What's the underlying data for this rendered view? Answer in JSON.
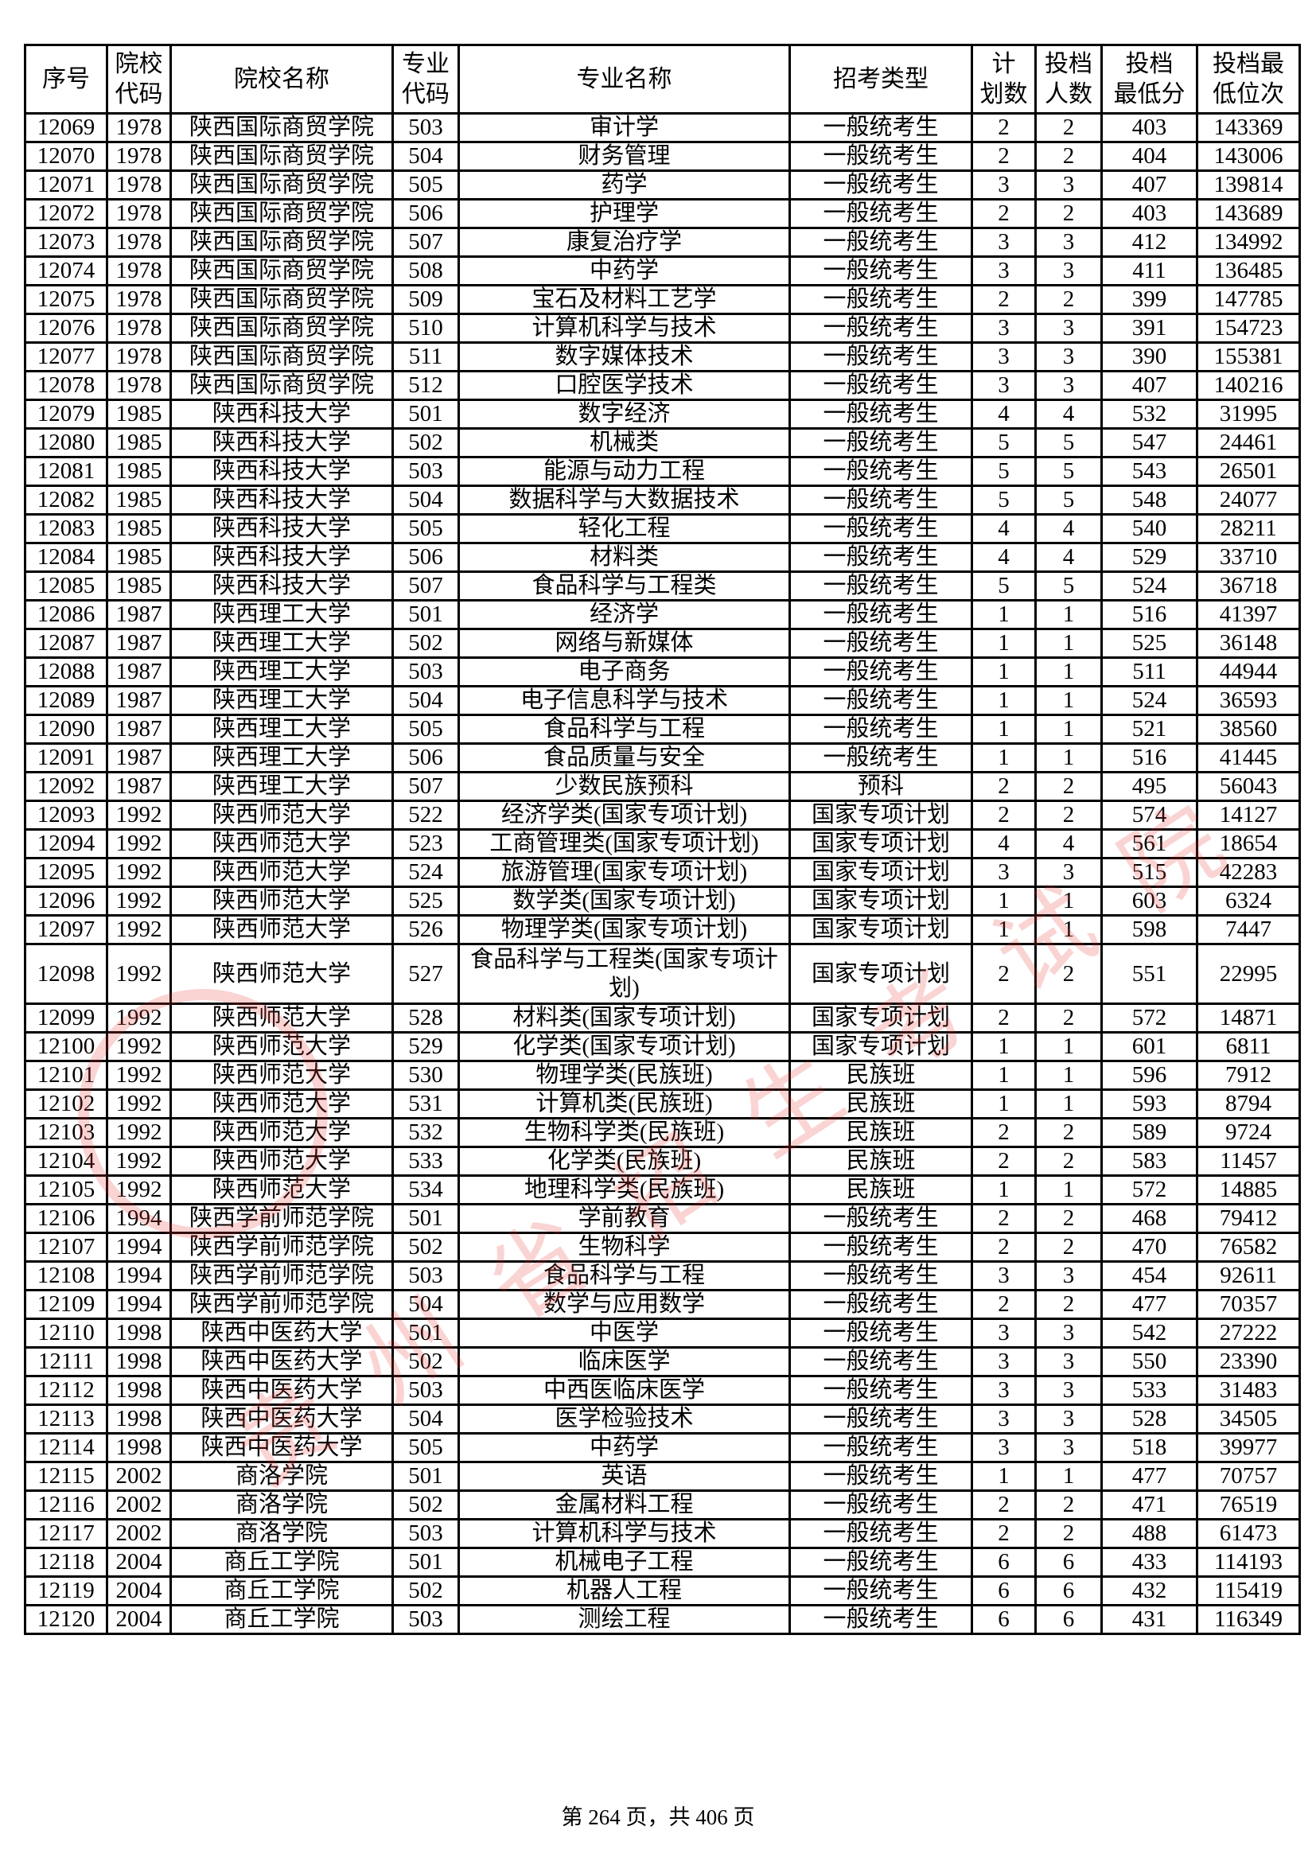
{
  "table": {
    "headers": [
      "序号",
      "院校\n代码",
      "院校名称",
      "专业\n代码",
      "专业名称",
      "招考类型",
      "计\n划数",
      "投档\n人数",
      "投档\n最低分",
      "投档最\n低位次"
    ],
    "rows": [
      [
        "12069",
        "1978",
        "陕西国际商贸学院",
        "503",
        "审计学",
        "一般统考生",
        "2",
        "2",
        "403",
        "143369"
      ],
      [
        "12070",
        "1978",
        "陕西国际商贸学院",
        "504",
        "财务管理",
        "一般统考生",
        "2",
        "2",
        "404",
        "143006"
      ],
      [
        "12071",
        "1978",
        "陕西国际商贸学院",
        "505",
        "药学",
        "一般统考生",
        "3",
        "3",
        "407",
        "139814"
      ],
      [
        "12072",
        "1978",
        "陕西国际商贸学院",
        "506",
        "护理学",
        "一般统考生",
        "2",
        "2",
        "403",
        "143689"
      ],
      [
        "12073",
        "1978",
        "陕西国际商贸学院",
        "507",
        "康复治疗学",
        "一般统考生",
        "3",
        "3",
        "412",
        "134992"
      ],
      [
        "12074",
        "1978",
        "陕西国际商贸学院",
        "508",
        "中药学",
        "一般统考生",
        "3",
        "3",
        "411",
        "136485"
      ],
      [
        "12075",
        "1978",
        "陕西国际商贸学院",
        "509",
        "宝石及材料工艺学",
        "一般统考生",
        "2",
        "2",
        "399",
        "147785"
      ],
      [
        "12076",
        "1978",
        "陕西国际商贸学院",
        "510",
        "计算机科学与技术",
        "一般统考生",
        "3",
        "3",
        "391",
        "154723"
      ],
      [
        "12077",
        "1978",
        "陕西国际商贸学院",
        "511",
        "数字媒体技术",
        "一般统考生",
        "3",
        "3",
        "390",
        "155381"
      ],
      [
        "12078",
        "1978",
        "陕西国际商贸学院",
        "512",
        "口腔医学技术",
        "一般统考生",
        "3",
        "3",
        "407",
        "140216"
      ],
      [
        "12079",
        "1985",
        "陕西科技大学",
        "501",
        "数字经济",
        "一般统考生",
        "4",
        "4",
        "532",
        "31995"
      ],
      [
        "12080",
        "1985",
        "陕西科技大学",
        "502",
        "机械类",
        "一般统考生",
        "5",
        "5",
        "547",
        "24461"
      ],
      [
        "12081",
        "1985",
        "陕西科技大学",
        "503",
        "能源与动力工程",
        "一般统考生",
        "5",
        "5",
        "543",
        "26501"
      ],
      [
        "12082",
        "1985",
        "陕西科技大学",
        "504",
        "数据科学与大数据技术",
        "一般统考生",
        "5",
        "5",
        "548",
        "24077"
      ],
      [
        "12083",
        "1985",
        "陕西科技大学",
        "505",
        "轻化工程",
        "一般统考生",
        "4",
        "4",
        "540",
        "28211"
      ],
      [
        "12084",
        "1985",
        "陕西科技大学",
        "506",
        "材料类",
        "一般统考生",
        "4",
        "4",
        "529",
        "33710"
      ],
      [
        "12085",
        "1985",
        "陕西科技大学",
        "507",
        "食品科学与工程类",
        "一般统考生",
        "5",
        "5",
        "524",
        "36718"
      ],
      [
        "12086",
        "1987",
        "陕西理工大学",
        "501",
        "经济学",
        "一般统考生",
        "1",
        "1",
        "516",
        "41397"
      ],
      [
        "12087",
        "1987",
        "陕西理工大学",
        "502",
        "网络与新媒体",
        "一般统考生",
        "1",
        "1",
        "525",
        "36148"
      ],
      [
        "12088",
        "1987",
        "陕西理工大学",
        "503",
        "电子商务",
        "一般统考生",
        "1",
        "1",
        "511",
        "44944"
      ],
      [
        "12089",
        "1987",
        "陕西理工大学",
        "504",
        "电子信息科学与技术",
        "一般统考生",
        "1",
        "1",
        "524",
        "36593"
      ],
      [
        "12090",
        "1987",
        "陕西理工大学",
        "505",
        "食品科学与工程",
        "一般统考生",
        "1",
        "1",
        "521",
        "38560"
      ],
      [
        "12091",
        "1987",
        "陕西理工大学",
        "506",
        "食品质量与安全",
        "一般统考生",
        "1",
        "1",
        "516",
        "41445"
      ],
      [
        "12092",
        "1987",
        "陕西理工大学",
        "507",
        "少数民族预科",
        "预科",
        "2",
        "2",
        "495",
        "56043"
      ],
      [
        "12093",
        "1992",
        "陕西师范大学",
        "522",
        "经济学类(国家专项计划)",
        "国家专项计划",
        "2",
        "2",
        "574",
        "14127"
      ],
      [
        "12094",
        "1992",
        "陕西师范大学",
        "523",
        "工商管理类(国家专项计划)",
        "国家专项计划",
        "4",
        "4",
        "561",
        "18654"
      ],
      [
        "12095",
        "1992",
        "陕西师范大学",
        "524",
        "旅游管理(国家专项计划)",
        "国家专项计划",
        "3",
        "3",
        "515",
        "42283"
      ],
      [
        "12096",
        "1992",
        "陕西师范大学",
        "525",
        "数学类(国家专项计划)",
        "国家专项计划",
        "1",
        "1",
        "603",
        "6324"
      ],
      [
        "12097",
        "1992",
        "陕西师范大学",
        "526",
        "物理学类(国家专项计划)",
        "国家专项计划",
        "1",
        "1",
        "598",
        "7447"
      ],
      [
        "12098",
        "1992",
        "陕西师范大学",
        "527",
        "食品科学与工程类(国家专项计划)",
        "国家专项计划",
        "2",
        "2",
        "551",
        "22995"
      ],
      [
        "12099",
        "1992",
        "陕西师范大学",
        "528",
        "材料类(国家专项计划)",
        "国家专项计划",
        "2",
        "2",
        "572",
        "14871"
      ],
      [
        "12100",
        "1992",
        "陕西师范大学",
        "529",
        "化学类(国家专项计划)",
        "国家专项计划",
        "1",
        "1",
        "601",
        "6811"
      ],
      [
        "12101",
        "1992",
        "陕西师范大学",
        "530",
        "物理学类(民族班)",
        "民族班",
        "1",
        "1",
        "596",
        "7912"
      ],
      [
        "12102",
        "1992",
        "陕西师范大学",
        "531",
        "计算机类(民族班)",
        "民族班",
        "1",
        "1",
        "593",
        "8794"
      ],
      [
        "12103",
        "1992",
        "陕西师范大学",
        "532",
        "生物科学类(民族班)",
        "民族班",
        "2",
        "2",
        "589",
        "9724"
      ],
      [
        "12104",
        "1992",
        "陕西师范大学",
        "533",
        "化学类(民族班)",
        "民族班",
        "2",
        "2",
        "583",
        "11457"
      ],
      [
        "12105",
        "1992",
        "陕西师范大学",
        "534",
        "地理科学类(民族班)",
        "民族班",
        "1",
        "1",
        "572",
        "14885"
      ],
      [
        "12106",
        "1994",
        "陕西学前师范学院",
        "501",
        "学前教育",
        "一般统考生",
        "2",
        "2",
        "468",
        "79412"
      ],
      [
        "12107",
        "1994",
        "陕西学前师范学院",
        "502",
        "生物科学",
        "一般统考生",
        "2",
        "2",
        "470",
        "76582"
      ],
      [
        "12108",
        "1994",
        "陕西学前师范学院",
        "503",
        "食品科学与工程",
        "一般统考生",
        "3",
        "3",
        "454",
        "92611"
      ],
      [
        "12109",
        "1994",
        "陕西学前师范学院",
        "504",
        "数学与应用数学",
        "一般统考生",
        "2",
        "2",
        "477",
        "70357"
      ],
      [
        "12110",
        "1998",
        "陕西中医药大学",
        "501",
        "中医学",
        "一般统考生",
        "3",
        "3",
        "542",
        "27222"
      ],
      [
        "12111",
        "1998",
        "陕西中医药大学",
        "502",
        "临床医学",
        "一般统考生",
        "3",
        "3",
        "550",
        "23390"
      ],
      [
        "12112",
        "1998",
        "陕西中医药大学",
        "503",
        "中西医临床医学",
        "一般统考生",
        "3",
        "3",
        "533",
        "31483"
      ],
      [
        "12113",
        "1998",
        "陕西中医药大学",
        "504",
        "医学检验技术",
        "一般统考生",
        "3",
        "3",
        "528",
        "34505"
      ],
      [
        "12114",
        "1998",
        "陕西中医药大学",
        "505",
        "中药学",
        "一般统考生",
        "3",
        "3",
        "518",
        "39977"
      ],
      [
        "12115",
        "2002",
        "商洛学院",
        "501",
        "英语",
        "一般统考生",
        "1",
        "1",
        "477",
        "70757"
      ],
      [
        "12116",
        "2002",
        "商洛学院",
        "502",
        "金属材料工程",
        "一般统考生",
        "2",
        "2",
        "471",
        "76519"
      ],
      [
        "12117",
        "2002",
        "商洛学院",
        "503",
        "计算机科学与技术",
        "一般统考生",
        "2",
        "2",
        "488",
        "61473"
      ],
      [
        "12118",
        "2004",
        "商丘工学院",
        "501",
        "机械电子工程",
        "一般统考生",
        "6",
        "6",
        "433",
        "114193"
      ],
      [
        "12119",
        "2004",
        "商丘工学院",
        "502",
        "机器人工程",
        "一般统考生",
        "6",
        "6",
        "432",
        "115419"
      ],
      [
        "12120",
        "2004",
        "商丘工学院",
        "503",
        "测绘工程",
        "一般统考生",
        "6",
        "6",
        "431",
        "116349"
      ]
    ]
  },
  "footer": "第 264 页，共 406 页",
  "watermark": {
    "text": "贵州省招生考试院",
    "color": "#e83a3a"
  }
}
